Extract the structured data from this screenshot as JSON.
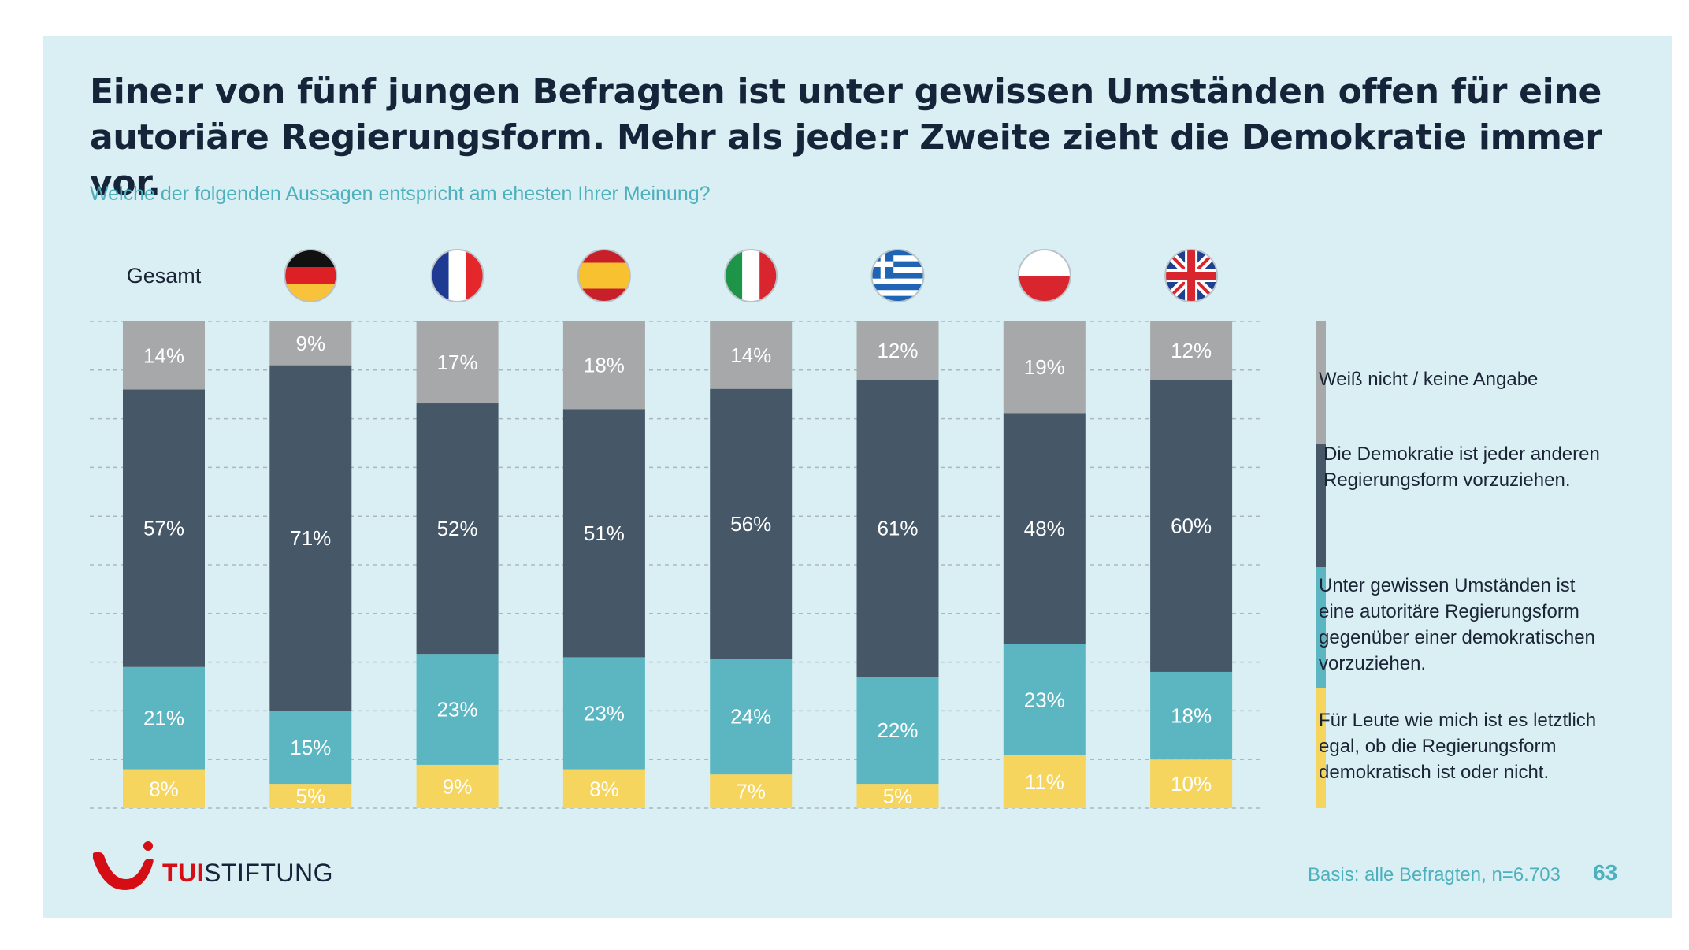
{
  "title": "Eine:r von fünf jungen Befragten ist unter gewissen Umständen offen für eine autoriäre Regierungsform. Mehr als jede:r Zweite zieht die Demokratie immer vor.",
  "subtitle": "Welche der folgenden Aussagen entspricht am ehesten Ihrer Meinung?",
  "basis": "Basis: alle Befragten, n=6.703",
  "page_number": "63",
  "logo": {
    "tui": "TUI",
    "stiftung": "STIFTUNG"
  },
  "colors": {
    "background_panel": "#d9eff3",
    "weiss_nicht": "#a7a8aa",
    "demokratie": "#465868",
    "autoritaer": "#5bb6c2",
    "egal": "#f6d55f",
    "accent": "#4db0bd",
    "brand_red": "#d40e14"
  },
  "chart_data": {
    "type": "bar",
    "stacked": true,
    "normalized": true,
    "categories": [
      "Gesamt",
      "Deutschland",
      "Frankreich",
      "Spanien",
      "Italien",
      "Griechenland",
      "Polen",
      "Großbritannien"
    ],
    "category_labels": [
      "Gesamt",
      "",
      "",
      "",
      "",
      "",
      "",
      ""
    ],
    "category_icons": [
      "",
      "flag-de-icon",
      "flag-fr-icon",
      "flag-es-icon",
      "flag-it-icon",
      "flag-gr-icon",
      "flag-pl-icon",
      "flag-uk-icon"
    ],
    "series": [
      {
        "name": "Für Leute wie mich ist es letztlich egal, ob die Regierungsform demokratisch ist oder nicht.",
        "color": "#f6d55f",
        "values": [
          8,
          5,
          9,
          8,
          7,
          5,
          11,
          10
        ],
        "labels": [
          "8%",
          "5%",
          "9%",
          "8%",
          "7%",
          "5%",
          "11%",
          "10%"
        ]
      },
      {
        "name": "Unter gewissen Umständen ist eine autoritäre Regierungsform gegenüber einer demokratischen vorzuziehen.",
        "color": "#5bb6c2",
        "values": [
          21,
          15,
          23,
          23,
          24,
          22,
          23,
          18
        ],
        "labels": [
          "21%",
          "15%",
          "23%",
          "23%",
          "24%",
          "22%",
          "23%",
          "18%"
        ]
      },
      {
        "name": "Die Demokratie ist jeder anderen Regierungsform vorzuziehen.",
        "color": "#465868",
        "values": [
          57,
          71,
          52,
          51,
          56,
          61,
          48,
          60
        ],
        "labels": [
          "57%",
          "71%",
          "52%",
          "51%",
          "56%",
          "61%",
          "48%",
          "60%"
        ]
      },
      {
        "name": "Weiß nicht / keine Angabe",
        "color": "#a7a8aa",
        "values": [
          14,
          9,
          17,
          18,
          14,
          12,
          19,
          12
        ],
        "labels": [
          "14%",
          "9%",
          "17%",
          "18%",
          "14%",
          "12%",
          "19%",
          "12%"
        ]
      }
    ],
    "legend": [
      {
        "lines": [
          "Weiß nicht / keine Angabe"
        ],
        "color": "#a7a8aa"
      },
      {
        "lines": [
          "Die Demokratie ist jeder anderen",
          "Regierungsform vorzuziehen."
        ],
        "color": "#465868"
      },
      {
        "lines": [
          "Unter gewissen Umständen ist",
          "eine autoritäre Regierungsform",
          "gegenüber einer demokratischen",
          "vorzuziehen."
        ],
        "color": "#5bb6c2"
      },
      {
        "lines": [
          "Für Leute wie mich ist es letztlich",
          "egal, ob die Regierungsform",
          "demokratisch ist oder nicht."
        ],
        "color": "#f6d55f"
      }
    ],
    "legend_position": "right",
    "grid": true,
    "ylim": [
      0,
      100
    ]
  }
}
